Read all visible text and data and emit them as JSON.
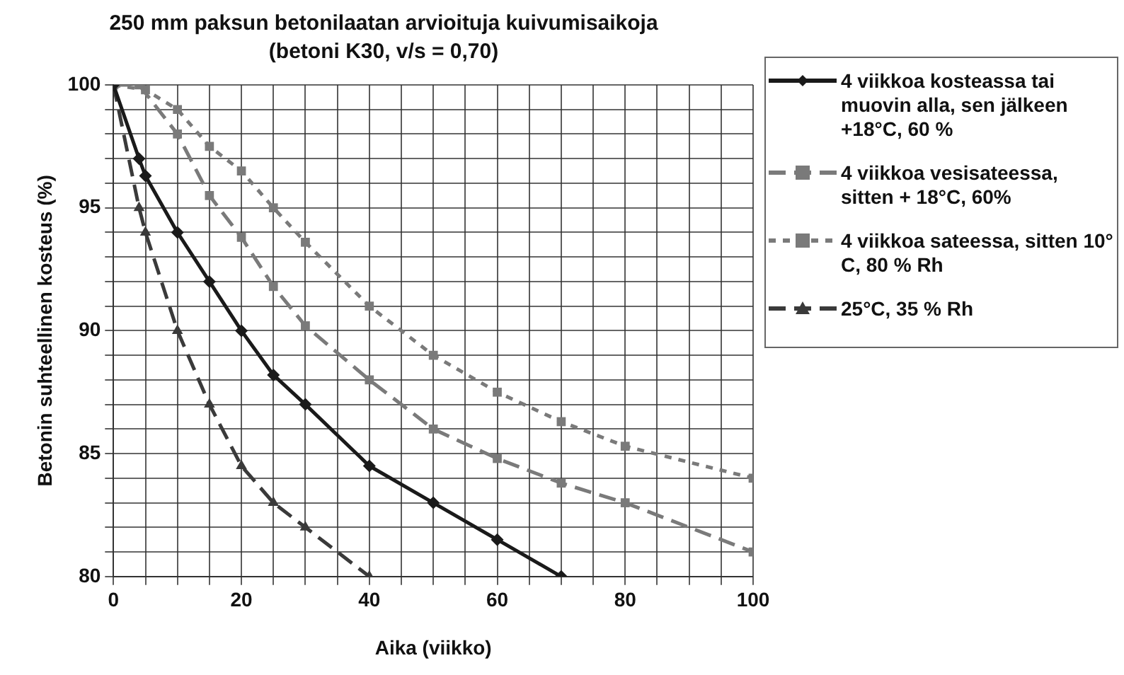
{
  "chart_data": {
    "type": "line",
    "title": "250 mm paksun betonilaatan arvioituja kuivumisaikoja",
    "subtitle": "(betoni K30, v/s = 0,70)",
    "xlabel": "Aika (viikko)",
    "ylabel": "Betonin suhteellinen kosteus (%)",
    "xlim": [
      0,
      100
    ],
    "xticks": [
      0,
      {
        "value": 5,
        "label": null
      },
      {
        "value": 10,
        "label": null
      },
      {
        "value": 15,
        "label": null
      },
      20,
      {
        "value": 25,
        "label": null
      },
      {
        "value": 30,
        "label": null
      },
      {
        "value": 35,
        "label": null
      },
      40,
      {
        "value": 45,
        "label": null
      },
      {
        "value": 50,
        "label": null
      },
      {
        "value": 55,
        "label": null
      },
      60,
      {
        "value": 65,
        "label": null
      },
      {
        "value": 70,
        "label": null
      },
      {
        "value": 75,
        "label": null
      },
      80,
      {
        "value": 85,
        "label": null
      },
      {
        "value": 90,
        "label": null
      },
      {
        "value": 95,
        "label": null
      },
      100
    ],
    "ylim": [
      80,
      100
    ],
    "yticks": [
      80,
      {
        "value": 81,
        "label": null
      },
      {
        "value": 82,
        "label": null
      },
      {
        "value": 83,
        "label": null
      },
      {
        "value": 84,
        "label": null
      },
      85,
      {
        "value": 86,
        "label": null
      },
      {
        "value": 87,
        "label": null
      },
      {
        "value": 88,
        "label": null
      },
      {
        "value": 89,
        "label": null
      },
      90,
      {
        "value": 91,
        "label": null
      },
      {
        "value": 92,
        "label": null
      },
      {
        "value": 93,
        "label": null
      },
      {
        "value": 94,
        "label": null
      },
      95,
      {
        "value": 96,
        "label": null
      },
      {
        "value": 97,
        "label": null
      },
      {
        "value": 98,
        "label": null
      },
      {
        "value": 99,
        "label": null
      },
      100
    ],
    "grid": true,
    "legend": "right",
    "series": [
      {
        "name": "4 viikkoa kosteassa tai muovin alla, sen jälkeen +18°C, 60 %",
        "color": "#1a1a1a",
        "marker": "diamond",
        "line_style": "solid",
        "x": [
          0,
          4,
          5,
          10,
          15,
          20,
          25,
          30,
          40,
          50,
          60,
          70
        ],
        "values": [
          100,
          97,
          96.3,
          94,
          92,
          90,
          88.2,
          87,
          84.5,
          83,
          81.5,
          80
        ]
      },
      {
        "name": "4 viikkoa vesisateessa, sitten + 18°C, 60%",
        "color": "#7a7a7a",
        "marker": "square",
        "line_style": "dashed",
        "x": [
          0,
          4,
          10,
          15,
          20,
          25,
          30,
          40,
          50,
          60,
          70,
          80,
          100
        ],
        "values": [
          100,
          100,
          98,
          95.5,
          93.8,
          91.8,
          90.2,
          88,
          86,
          84.8,
          83.8,
          83,
          81
        ]
      },
      {
        "name": "4 viikkoa sateessa, sitten 10° C, 80 % Rh",
        "color": "#7a7a7a",
        "marker": "square",
        "line_style": "dotted",
        "x": [
          0,
          5,
          10,
          15,
          20,
          25,
          30,
          40,
          50,
          60,
          70,
          80,
          100
        ],
        "values": [
          100,
          99.8,
          99,
          97.5,
          96.5,
          95,
          93.6,
          91,
          89,
          87.5,
          86.3,
          85.3,
          84
        ]
      },
      {
        "name": "25°C, 35 % Rh",
        "color": "#3a3a3a",
        "marker": "triangle",
        "line_style": "dashed",
        "x": [
          0,
          4,
          5,
          10,
          15,
          20,
          25,
          30,
          40
        ],
        "values": [
          100,
          95,
          94,
          90,
          87,
          84.5,
          83,
          82,
          80
        ]
      }
    ]
  }
}
